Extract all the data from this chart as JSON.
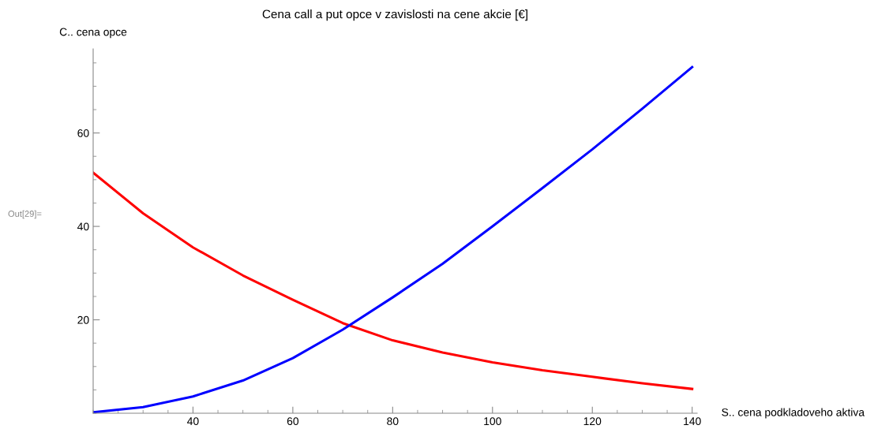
{
  "chart_data": {
    "type": "line",
    "title": "Cena call a put opce v zavislosti na cene akcie [€]",
    "xlabel": "S.. cena podkladoveho aktiva",
    "ylabel": "C.. cena opce",
    "annotations": [
      "Out[29]="
    ],
    "x": [
      20,
      30,
      40,
      50,
      60,
      70,
      80,
      90,
      100,
      110,
      120,
      130,
      140
    ],
    "series": [
      {
        "color": "#ff0000",
        "values": [
          51.5,
          42.8,
          35.5,
          29.5,
          24.3,
          19.3,
          15.6,
          13.0,
          10.9,
          9.2,
          7.8,
          6.4,
          5.2
        ]
      },
      {
        "color": "#0000ff",
        "values": [
          0.2,
          1.3,
          3.6,
          7.0,
          11.8,
          17.9,
          24.8,
          32.0,
          40.0,
          48.2,
          56.5,
          65.2,
          74.1
        ]
      }
    ],
    "xlim": [
      20,
      141
    ],
    "ylim": [
      0,
      78
    ],
    "xticks": [
      40,
      60,
      80,
      100,
      120,
      140
    ],
    "yticks": [
      20,
      40,
      60
    ],
    "grid": false,
    "legend": false,
    "marker": "none",
    "line_style": "solid"
  }
}
